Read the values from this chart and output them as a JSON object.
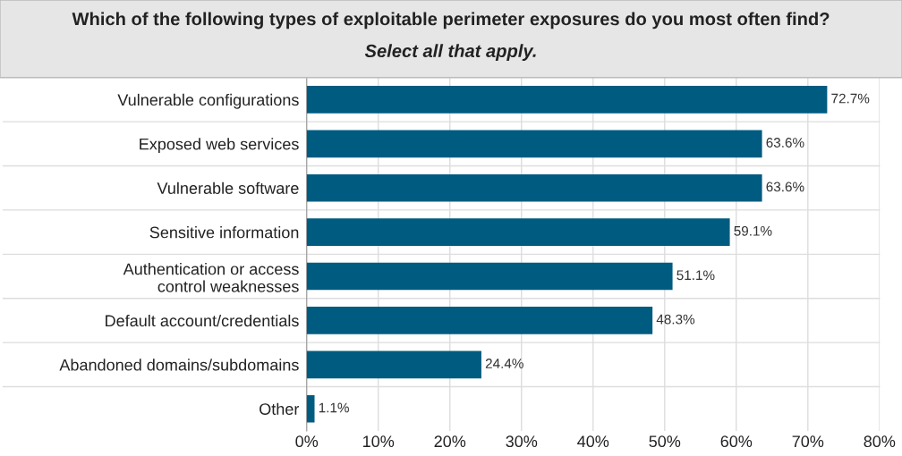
{
  "chart_data": {
    "type": "bar",
    "orientation": "horizontal",
    "title": "Which of the following types of exploitable perimeter exposures do you most often find?",
    "subtitle": "Select all that apply.",
    "categories": [
      "Vulnerable configurations",
      "Exposed web services",
      "Vulnerable software",
      "Sensitive information",
      "Authentication or access\ncontrol weaknesses",
      "Default account/credentials",
      "Abandoned domains/subdomains",
      "Other"
    ],
    "values": [
      72.7,
      63.6,
      63.6,
      59.1,
      51.1,
      48.3,
      24.4,
      1.1
    ],
    "value_labels": [
      "72.7%",
      "63.6%",
      "63.6%",
      "59.1%",
      "51.1%",
      "48.3%",
      "24.4%",
      "1.1%"
    ],
    "color": "#005b80",
    "xlim": [
      0,
      80
    ],
    "xticks": [
      {
        "value": 0,
        "label": "0%"
      },
      {
        "value": 10,
        "label": "10%"
      },
      {
        "value": 20,
        "label": "20%"
      },
      {
        "value": 30,
        "label": "30%"
      },
      {
        "value": 40,
        "label": "40%"
      },
      {
        "value": 50,
        "label": "50%"
      },
      {
        "value": 60,
        "label": "60%"
      },
      {
        "value": 70,
        "label": "70%"
      },
      {
        "value": 80,
        "label": "80%"
      }
    ],
    "grid": "x"
  }
}
